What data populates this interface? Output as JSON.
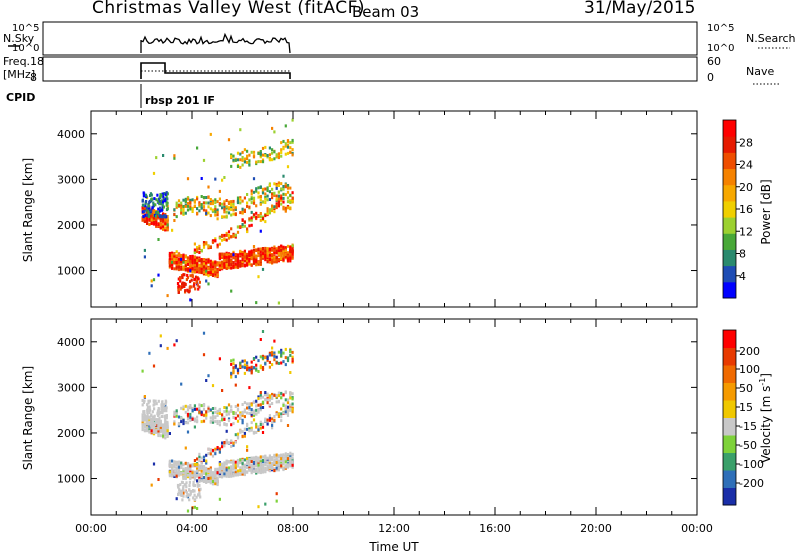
{
  "header": {
    "station": "Christmas Valley West (fitACF)",
    "beam": "Beam 03",
    "date": "31/May/2015"
  },
  "param_panels": {
    "nsky": {
      "label": "N.Sky",
      "ticks": [
        "10^5",
        "10^0"
      ],
      "right_label": "N.Search",
      "right_ticks": [
        "10^5",
        "10^0"
      ]
    },
    "freq": {
      "label_top": "Freq.",
      "label_bottom": "[MHz]",
      "ticks": [
        "18",
        "8"
      ],
      "right_label": "Nave",
      "right_ticks": [
        "60",
        "0"
      ]
    },
    "cpid": {
      "label": "CPID",
      "program": "rbsp 201 IF"
    }
  },
  "chart_data": [
    {
      "type": "heatmap",
      "name": "power",
      "ylabel": "Slant Range [km]",
      "xlabel": "",
      "xlim": [
        0,
        24
      ],
      "ylim": [
        200,
        4500
      ],
      "ytick_labels": [
        "1000",
        "2000",
        "3000",
        "4000"
      ],
      "colorbar": {
        "label": "Power [dB]",
        "ticks": [
          "4",
          "8",
          "12",
          "16",
          "20",
          "24",
          "28"
        ],
        "colors": [
          "#0000ff",
          "#1e4cb4",
          "#2a8a6e",
          "#48a838",
          "#9cd130",
          "#f0cf00",
          "#f7a800",
          "#f58200",
          "#ef4e00",
          "#e61a00",
          "#ff0000"
        ]
      },
      "data_window": [
        2.0,
        8.0
      ]
    },
    {
      "type": "heatmap",
      "name": "velocity",
      "ylabel": "Slant Range [km]",
      "xlabel": "Time UT",
      "xlim": [
        0,
        24
      ],
      "ylim": [
        200,
        4500
      ],
      "ytick_labels": [
        "1000",
        "2000",
        "3000",
        "4000"
      ],
      "xtick_labels": [
        "00:00",
        "04:00",
        "08:00",
        "12:00",
        "16:00",
        "20:00",
        "00:00"
      ],
      "colorbar": {
        "label_main": "Velocity [m s",
        "label_exp": "-1",
        "label_close": "]",
        "ticks": [
          "200",
          "100",
          "50",
          "15",
          "-15",
          "-50",
          "-100",
          "-200"
        ],
        "colors": [
          "#1a2ea8",
          "#2f6fb8",
          "#3aa06a",
          "#7ed23a",
          "#c8c8c8",
          "#f0c800",
          "#f59a00",
          "#f06a00",
          "#e83a00",
          "#ff0000"
        ]
      },
      "data_window": [
        2.0,
        8.0
      ]
    }
  ]
}
